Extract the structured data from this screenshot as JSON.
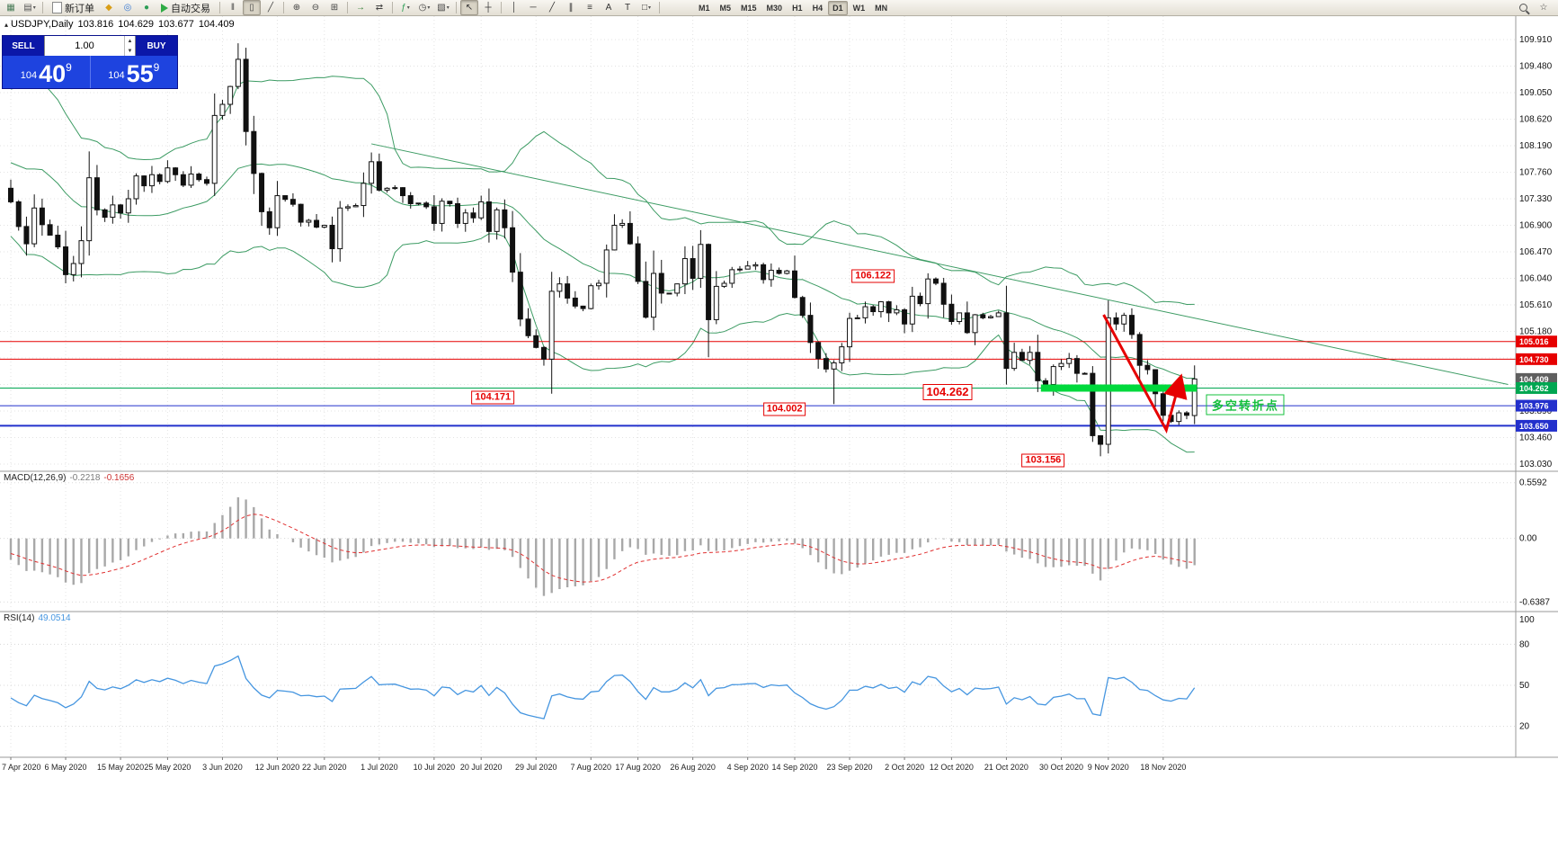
{
  "toolbar": {
    "new_order_label": "新订单",
    "autotrading_label": "自动交易",
    "timeframes": [
      "M1",
      "M5",
      "M15",
      "M30",
      "H1",
      "H4",
      "D1",
      "W1",
      "MN"
    ],
    "active_timeframe": "D1",
    "g1": [
      {
        "name": "new-chart-icon",
        "glyph": "▦",
        "color": "#4a7c59"
      },
      {
        "name": "chart-profiles-icon",
        "glyph": "▤",
        "color": "#555",
        "caret": true
      }
    ],
    "g2": [
      {
        "name": "metaeditor-icon",
        "glyph": "◆",
        "color": "#d99e16"
      },
      {
        "name": "strategy-tester-icon",
        "glyph": "◎",
        "color": "#3a7bd5"
      },
      {
        "name": "market-icon",
        "glyph": "●",
        "color": "#2e9e57"
      }
    ],
    "g3": [
      {
        "name": "bar-chart-icon",
        "glyph": "‖",
        "color": "#444"
      },
      {
        "name": "candlestick-chart-icon",
        "glyph": "▯",
        "color": "#444",
        "active": true
      },
      {
        "name": "line-chart-icon",
        "glyph": "╱",
        "color": "#444"
      }
    ],
    "g4": [
      {
        "name": "zoom-in-icon",
        "glyph": "⊕",
        "color": "#444"
      },
      {
        "name": "zoom-out-icon",
        "glyph": "⊖",
        "color": "#444"
      },
      {
        "name": "tile-windows-icon",
        "glyph": "⊞",
        "color": "#444"
      }
    ],
    "g5": [
      {
        "name": "auto-scroll-icon",
        "glyph": "→",
        "color": "#2e7d32"
      },
      {
        "name": "chart-shift-icon",
        "glyph": "⇄",
        "color": "#444"
      }
    ],
    "g6": [
      {
        "name": "indicators-icon",
        "glyph": "ƒ",
        "color": "#2e9e57",
        "caret": true
      },
      {
        "name": "periods-icon",
        "glyph": "◷",
        "color": "#444",
        "caret": true
      },
      {
        "name": "templates-icon",
        "glyph": "▧",
        "color": "#444",
        "caret": true
      }
    ],
    "g7": [
      {
        "name": "cursor-icon",
        "glyph": "↖",
        "color": "#333",
        "active": true
      },
      {
        "name": "crosshair-icon",
        "glyph": "┼",
        "color": "#333"
      }
    ],
    "g8": [
      {
        "name": "vertical-line-icon",
        "glyph": "│",
        "color": "#333"
      },
      {
        "name": "horizontal-line-icon",
        "glyph": "─",
        "color": "#333"
      },
      {
        "name": "trendline-icon",
        "glyph": "╱",
        "color": "#333"
      },
      {
        "name": "channel-icon",
        "glyph": "∥",
        "color": "#333"
      },
      {
        "name": "fibonacci-icon",
        "glyph": "≡",
        "color": "#333"
      },
      {
        "name": "text-icon",
        "glyph": "A",
        "color": "#333"
      },
      {
        "name": "text-label-icon",
        "glyph": "T",
        "color": "#333"
      },
      {
        "name": "shapes-icon",
        "glyph": "□",
        "color": "#333",
        "caret": true
      }
    ],
    "right": [
      {
        "name": "search-icon",
        "glyph": "",
        "color": "#444",
        "mag": true
      },
      {
        "name": "favorites-icon",
        "glyph": "☆",
        "color": "#444"
      }
    ]
  },
  "chart": {
    "symbol": "USDJPY,Daily",
    "open": "103.816",
    "high": "104.629",
    "low": "103.677",
    "close": "104.409"
  },
  "trade_panel": {
    "sell_label": "SELL",
    "buy_label": "BUY",
    "volume": "1.00",
    "sell_price_prefix": "104",
    "sell_price_big": "40",
    "sell_price_sup": "9",
    "buy_price_prefix": "104",
    "buy_price_big": "55",
    "buy_price_sup": "9"
  },
  "price_axis": {
    "labels": [
      "109.910",
      "109.480",
      "109.050",
      "108.620",
      "108.190",
      "107.760",
      "107.330",
      "106.900",
      "106.470",
      "106.040",
      "105.610",
      "105.180",
      "104.750",
      "104.320",
      "103.890",
      "103.460",
      "103.030"
    ],
    "tags": [
      {
        "text": "105.016",
        "bg": "#e60000"
      },
      {
        "text": "104.730",
        "bg": "#e60000"
      },
      {
        "text": "104.409",
        "bg": "#5f5f5f"
      },
      {
        "text": "104.262",
        "bg": "#00a651"
      },
      {
        "text": "103.976",
        "bg": "#2330cc"
      },
      {
        "text": "103.650",
        "bg": "#2330cc"
      }
    ]
  },
  "date_axis": [
    {
      "label": "7 Apr 2020",
      "i": 0
    },
    {
      "label": "6 May 2020",
      "i": 7
    },
    {
      "label": "15 May 2020",
      "i": 14
    },
    {
      "label": "25 May 2020",
      "i": 20
    },
    {
      "label": "3 Jun 2020",
      "i": 27
    },
    {
      "label": "12 Jun 2020",
      "i": 34
    },
    {
      "label": "22 Jun 2020",
      "i": 40
    },
    {
      "label": "1 Jul 2020",
      "i": 47
    },
    {
      "label": "10 Jul 2020",
      "i": 54
    },
    {
      "label": "20 Jul 2020",
      "i": 60
    },
    {
      "label": "29 Jul 2020",
      "i": 67
    },
    {
      "label": "7 Aug 2020",
      "i": 74
    },
    {
      "label": "17 Aug 2020",
      "i": 80
    },
    {
      "label": "26 Aug 2020",
      "i": 87
    },
    {
      "label": "4 Sep 2020",
      "i": 94
    },
    {
      "label": "14 Sep 2020",
      "i": 100
    },
    {
      "label": "23 Sep 2020",
      "i": 107
    },
    {
      "label": "2 Oct 2020",
      "i": 114
    },
    {
      "label": "12 Oct 2020",
      "i": 120
    },
    {
      "label": "21 Oct 2020",
      "i": 127
    },
    {
      "label": "30 Oct 2020",
      "i": 134
    },
    {
      "label": "9 Nov 2020",
      "i": 140
    },
    {
      "label": "18 Nov 2020",
      "i": 147
    }
  ],
  "indicators": {
    "macd": {
      "name": "MACD(12,26,9)",
      "value_main": "-0.2218",
      "value_signal": "-0.1656",
      "axis": [
        {
          "text": "0.5592",
          "v": 0.5592
        },
        {
          "text": "0.00",
          "v": 0
        },
        {
          "text": "-0.6387",
          "v": -0.6387
        }
      ]
    },
    "rsi": {
      "name": "RSI(14)",
      "value": "49.0514",
      "axis": [
        {
          "text": "100",
          "v": 100
        },
        {
          "text": "80",
          "v": 80
        },
        {
          "text": "50",
          "v": 50
        },
        {
          "text": "20",
          "v": 20
        }
      ],
      "levels": [
        80,
        50,
        20
      ]
    }
  },
  "objects": {
    "hlines": [
      {
        "price": 105.016,
        "color": "#e60000",
        "width": 1
      },
      {
        "price": 104.73,
        "color": "#e60000",
        "width": 1
      },
      {
        "price": 104.262,
        "color": "#00a651",
        "width": 1
      },
      {
        "price": 103.976,
        "color": "#2330cc",
        "width": 1
      },
      {
        "price": 103.65,
        "color": "#2330cc",
        "width": 2
      }
    ],
    "trendline": {
      "i1": 46,
      "p1": 108.22,
      "i2": 191,
      "p2": 104.32,
      "color": "#3c9b63"
    },
    "support_bar": {
      "i1": 131.4,
      "i2": 151.3,
      "price": 104.262,
      "color": "#00d93c",
      "width": 8
    },
    "arrow": {
      "points": [
        [
          139.4,
          105.45
        ],
        [
          147.4,
          103.58
        ],
        [
          149.1,
          104.37
        ]
      ],
      "color": "#e60000",
      "width": 3
    }
  },
  "annotations": {
    "price_labels": [
      {
        "text": "104.171",
        "i": 61.5,
        "p": 104.115
      },
      {
        "text": "104.002",
        "i": 98.7,
        "p": 103.915
      },
      {
        "text": "106.122",
        "i": 110,
        "p": 106.076
      },
      {
        "text": "104.262",
        "i": 119.5,
        "p": 104.195,
        "big": true
      },
      {
        "text": "103.156",
        "i": 131.7,
        "p": 103.087
      }
    ],
    "note": {
      "text": "多空转折点",
      "i": 157.5,
      "p": 103.99
    }
  },
  "series": {
    "pre_closes": [
      108.4,
      107.9,
      107.6,
      107.2,
      107.1,
      108.9,
      108.9,
      109.2,
      108.8,
      108.5,
      107.8,
      107.6,
      107.9,
      107.5,
      107.6,
      107.9,
      107.8,
      107.6,
      107.7,
      107.5
    ],
    "closes": [
      107.28,
      106.88,
      106.6,
      107.18,
      106.91,
      106.74,
      106.55,
      106.1,
      106.28,
      106.65,
      107.67,
      107.15,
      107.03,
      107.23,
      107.1,
      107.33,
      107.7,
      107.54,
      107.72,
      107.61,
      107.83,
      107.72,
      107.55,
      107.73,
      107.64,
      107.58,
      108.68,
      108.86,
      109.15,
      109.59,
      108.42,
      107.74,
      107.12,
      106.86,
      107.38,
      107.32,
      107.24,
      106.95,
      106.98,
      106.87,
      106.9,
      106.52,
      107.18,
      107.2,
      107.22,
      107.58,
      107.93,
      107.47,
      107.5,
      107.51,
      107.38,
      107.25,
      107.26,
      107.2,
      106.93,
      107.29,
      107.25,
      106.93,
      107.1,
      107.02,
      107.28,
      106.8,
      107.15,
      106.86,
      106.14,
      105.38,
      105.11,
      104.92,
      104.73,
      105.83,
      105.95,
      105.72,
      105.59,
      105.55,
      105.92,
      105.96,
      106.5,
      106.9,
      106.93,
      106.6,
      105.99,
      105.41,
      106.12,
      105.8,
      105.8,
      105.95,
      106.36,
      106.04,
      106.59,
      105.37,
      105.91,
      105.96,
      106.18,
      106.19,
      106.24,
      106.26,
      106.02,
      106.17,
      106.12,
      106.16,
      105.73,
      105.44,
      105.0,
      104.74,
      104.57,
      104.67,
      104.93,
      105.39,
      105.4,
      105.58,
      105.5,
      105.66,
      105.48,
      105.53,
      105.3,
      105.75,
      105.63,
      106.03,
      105.96,
      105.62,
      105.34,
      105.48,
      105.16,
      105.45,
      105.4,
      105.42,
      105.48,
      104.58,
      104.84,
      104.71,
      104.84,
      104.38,
      104.32,
      104.61,
      104.66,
      104.74,
      104.5,
      104.5,
      103.49,
      103.35,
      105.4,
      105.3,
      105.44,
      105.13,
      104.63,
      104.56,
      104.17,
      103.82,
      103.72,
      103.86,
      103.82,
      104.409
    ],
    "overrides": {
      "29": {
        "h": 109.85
      },
      "69": {
        "l": 104.171
      },
      "105": {
        "l": 104.002
      },
      "117": {
        "h": 106.122
      },
      "139": {
        "l": 103.156
      },
      "140": {
        "h": 105.68,
        "l": 103.2
      },
      "151": {
        "o": 103.816,
        "h": 104.629,
        "l": 103.677,
        "c": 104.409
      }
    },
    "band_color": "#3c9b63",
    "macd_bar_color": "#a8a8a8",
    "macd_signal_color": "#e03030",
    "rsi_color": "#4696e0"
  }
}
